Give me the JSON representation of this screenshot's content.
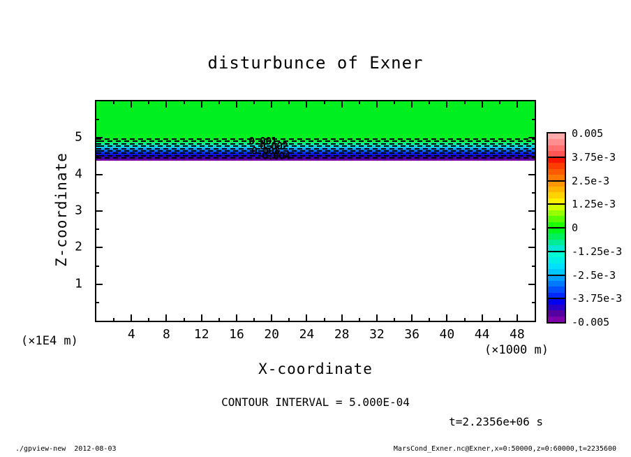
{
  "chart_data": {
    "type": "heatmap",
    "title": "disturbunce of Exner",
    "xlabel": "X-coordinate",
    "ylabel": "Z-coordinate",
    "x_unit_label": "(×1000 m)",
    "y_unit_label": "(×1E4 m)",
    "xlim": [
      0,
      50
    ],
    "ylim": [
      0,
      6
    ],
    "x_major_ticks": [
      4,
      8,
      12,
      16,
      20,
      24,
      28,
      32,
      36,
      40,
      44,
      48
    ],
    "x_minor_ticks": [
      2,
      6,
      10,
      14,
      18,
      22,
      26,
      30,
      34,
      38,
      42,
      46
    ],
    "y_major_ticks": [
      1,
      2,
      3,
      4,
      5
    ],
    "y_minor_ticks": [
      0.5,
      1.5,
      2.5,
      3.5,
      4.5,
      5.5
    ],
    "contour_interval_label": "CONTOUR INTERVAL = 5.000E-04",
    "time_label": "t=2.2356e+06 s",
    "inline_contour_labels": [
      "0.001",
      "0.002",
      "0.003",
      "0.004"
    ],
    "dashed_contour_line_count": 9,
    "field_summary": "Exner disturbance is ~0 (green fill) for z above ~4.7e4 m; a thin layer between z~4.7e4 m and z~4.5e4 m drops to ~-0.005 (green to cyan, blue, purple with dashed negative contours every 5e-4); no shading (white) below z~4.5e4 m.",
    "background_fill_color": "#00ef21",
    "fill_band_colors": [
      "#00ef21",
      "#00f45c",
      "#00efc4",
      "#00c4fa",
      "#0076ff",
      "#002bff",
      "#1000cc",
      "#44009f",
      "#7d00a4"
    ],
    "colorbar": {
      "tick_labels": [
        "0.005",
        "3.75e-3",
        "2.5e-3",
        "1.25e-3",
        "0",
        "-1.25e-3",
        "-2.5e-3",
        "-3.75e-3",
        "-0.005"
      ],
      "cells": [
        [
          "#ffaaaa",
          "#ff8e8e",
          "#ff7171",
          "#ff5555"
        ],
        [
          "#fb1400",
          "#ff3c00",
          "#ff5a00",
          "#ff7800"
        ],
        [
          "#ff9600",
          "#ffb400",
          "#ffd200",
          "#fff000"
        ],
        [
          "#d2ff00",
          "#96ff00",
          "#5aff00",
          "#1eff00"
        ],
        [
          "#00f51e",
          "#00f05a",
          "#00ec96",
          "#00e7d2"
        ],
        [
          "#00ffd2",
          "#00f0e6",
          "#00e1fa",
          "#00c8ff"
        ],
        [
          "#00a0ff",
          "#0078ff",
          "#0050ff",
          "#0028ff"
        ],
        [
          "#0000f0",
          "#2a00c8",
          "#5400a0",
          "#7e00a8"
        ]
      ]
    }
  },
  "footer": {
    "left": "./gpview-new  2012-08-03",
    "right": "MarsCond_Exner.nc@Exner,x=0:50000,z=0:60000,t=2235600"
  }
}
